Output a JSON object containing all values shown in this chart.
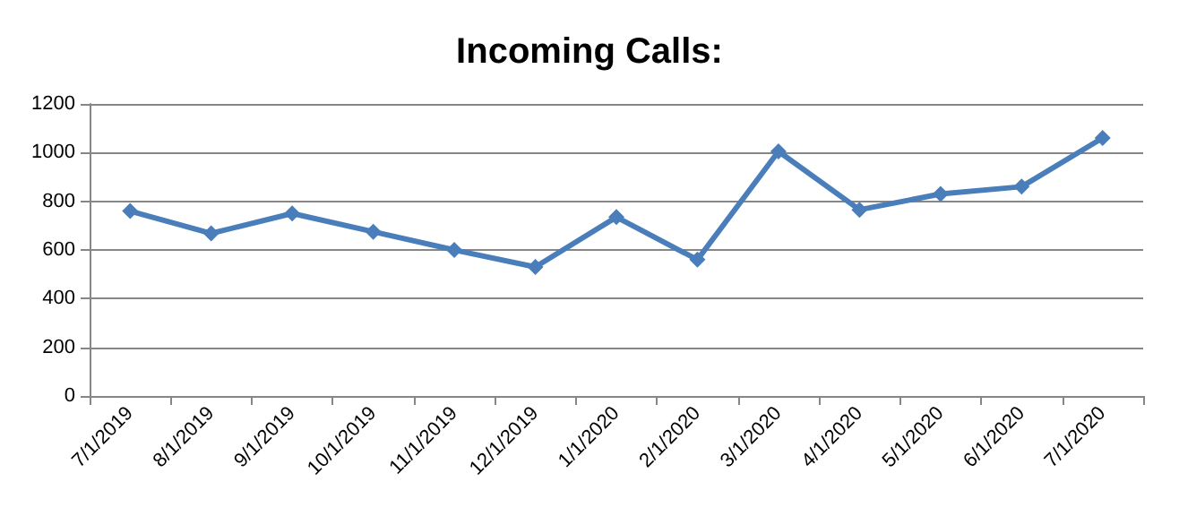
{
  "chart_data": {
    "type": "line",
    "title": "Incoming Calls:",
    "categories": [
      "7/1/2019",
      "8/1/2019",
      "9/1/2019",
      "10/1/2019",
      "11/1/2019",
      "12/1/2019",
      "1/1/2020",
      "2/1/2020",
      "3/1/2020",
      "4/1/2020",
      "5/1/2020",
      "6/1/2020",
      "7/1/2020"
    ],
    "series": [
      {
        "color": "#4a7ebb",
        "values": [
          760,
          668,
          750,
          675,
          600,
          530,
          735,
          560,
          1005,
          765,
          830,
          860,
          1060
        ]
      }
    ],
    "ylim": [
      0,
      1200
    ],
    "yticks": [
      0,
      200,
      400,
      600,
      800,
      1000,
      1200
    ],
    "grid": "y",
    "marker": "diamond",
    "line_style": "solid"
  }
}
